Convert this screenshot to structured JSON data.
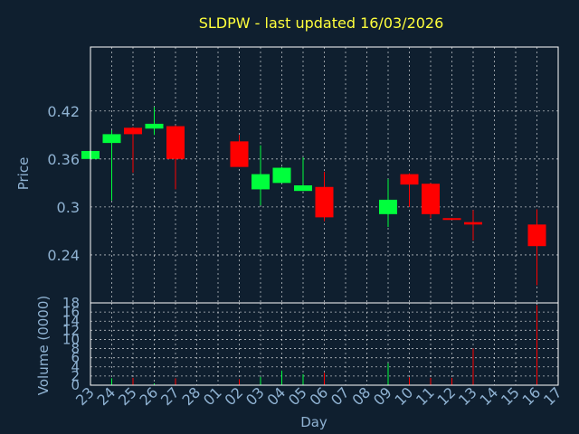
{
  "chart_data": {
    "type": "candlestick",
    "title": "SLDPW - last updated 16/03/2026",
    "xlabel": "Day",
    "ylabel_price": "Price",
    "ylabel_volume": "Volume (0000)",
    "x_ticks": [
      "23",
      "24",
      "25",
      "26",
      "27",
      "28",
      "01",
      "02",
      "03",
      "04",
      "05",
      "06",
      "07",
      "08",
      "09",
      "10",
      "11",
      "12",
      "13",
      "14",
      "15",
      "16",
      "17"
    ],
    "y_ticks_price": [
      0.24,
      0.3,
      0.36,
      0.42
    ],
    "y_tick_labels_price": [
      "0.24",
      "0.3",
      "0.36",
      "0.42"
    ],
    "ylim_price": [
      0.18,
      0.5
    ],
    "y_ticks_volume": [
      0,
      2,
      4,
      6,
      8,
      10,
      12,
      14,
      16,
      18
    ],
    "y_tick_labels_volume": [
      "0",
      "2",
      "4",
      "6",
      "8",
      "10",
      "12",
      "14",
      "16",
      "18"
    ],
    "ylim_volume": [
      0,
      18
    ],
    "grid": true,
    "colors": {
      "up": "#00ff3c",
      "down": "#ff0000",
      "background": "#0f1f2f",
      "title": "#ffff3c",
      "axis_text": "#8fb2d2"
    },
    "candles": [
      {
        "x": 23,
        "open": 0.36,
        "high": 0.371,
        "low": 0.358,
        "close": 0.37,
        "volume": 0.2
      },
      {
        "x": 24,
        "open": 0.38,
        "high": 0.396,
        "low": 0.308,
        "close": 0.391,
        "volume": 1.5
      },
      {
        "x": 25,
        "open": 0.399,
        "high": 0.4,
        "low": 0.343,
        "close": 0.391,
        "volume": 1.6
      },
      {
        "x": 26,
        "open": 0.398,
        "high": 0.425,
        "low": 0.39,
        "close": 0.404,
        "volume": 0.4
      },
      {
        "x": 27,
        "open": 0.401,
        "high": 0.402,
        "low": 0.322,
        "close": 0.36,
        "volume": 1.5
      },
      {
        "x": 30,
        "open": 0.382,
        "high": 0.39,
        "low": 0.35,
        "close": 0.35,
        "volume": 1.3
      },
      {
        "x": 31,
        "open": 0.322,
        "high": 0.377,
        "low": 0.302,
        "close": 0.341,
        "volume": 1.8
      },
      {
        "x": 32,
        "open": 0.33,
        "high": 0.35,
        "low": 0.33,
        "close": 0.349,
        "volume": 3.2
      },
      {
        "x": 33,
        "open": 0.32,
        "high": 0.362,
        "low": 0.32,
        "close": 0.327,
        "volume": 2.4
      },
      {
        "x": 34,
        "open": 0.325,
        "high": 0.344,
        "low": 0.282,
        "close": 0.287,
        "volume": 2.7
      },
      {
        "x": 37,
        "open": 0.291,
        "high": 0.335,
        "low": 0.275,
        "close": 0.309,
        "volume": 4.8
      },
      {
        "x": 38,
        "open": 0.341,
        "high": 0.342,
        "low": 0.3,
        "close": 0.328,
        "volume": 1.7
      },
      {
        "x": 39,
        "open": 0.329,
        "high": 0.33,
        "low": 0.286,
        "close": 0.291,
        "volume": 1.6
      },
      {
        "x": 40,
        "open": 0.286,
        "high": 0.286,
        "low": 0.284,
        "close": 0.284,
        "volume": 1.6
      },
      {
        "x": 41,
        "open": 0.281,
        "high": 0.296,
        "low": 0.258,
        "close": 0.278,
        "volume": 8.0
      },
      {
        "x": 44,
        "open": 0.278,
        "high": 0.297,
        "low": 0.202,
        "close": 0.251,
        "volume": 17.5
      }
    ]
  }
}
